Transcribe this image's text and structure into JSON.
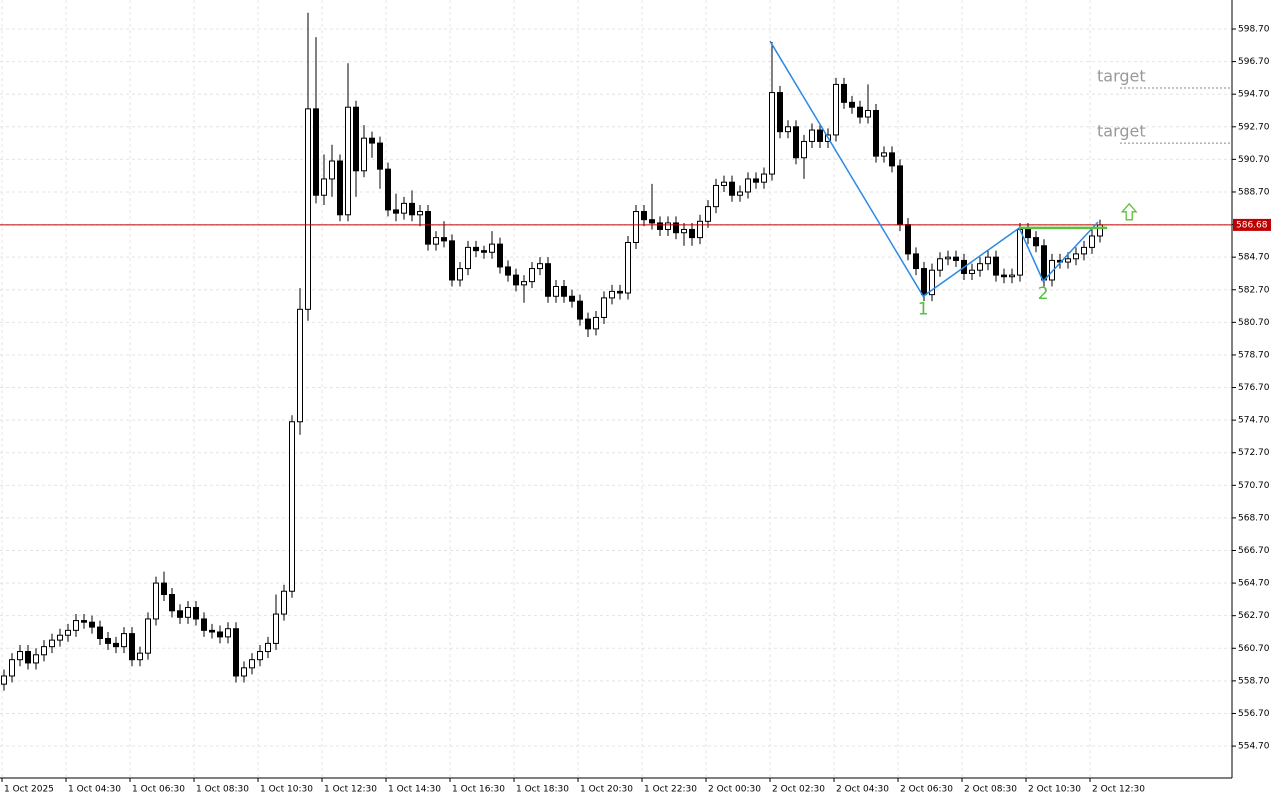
{
  "chart_data": {
    "type": "candlestick",
    "categories": [
      "1 Oct 2025",
      null,
      null,
      null,
      null,
      null,
      null,
      null,
      "1 Oct 04:30",
      null,
      null,
      null,
      null,
      null,
      null,
      null,
      "1 Oct 06:30",
      null,
      null,
      null,
      null,
      null,
      null,
      null,
      "1 Oct 08:30",
      null,
      null,
      null,
      null,
      null,
      null,
      null,
      "1 Oct 10:30",
      null,
      null,
      null,
      null,
      null,
      null,
      null,
      "1 Oct 12:30",
      null,
      null,
      null,
      null,
      null,
      null,
      null,
      "1 Oct 14:30",
      null,
      null,
      null,
      null,
      null,
      null,
      null,
      "1 Oct 16:30",
      null,
      null,
      null,
      null,
      null,
      null,
      null,
      "1 Oct 18:30",
      null,
      null,
      null,
      null,
      null,
      null,
      null,
      "1 Oct 20:30",
      null,
      null,
      null,
      null,
      null,
      null,
      null,
      "1 Oct 22:30",
      null,
      null,
      null,
      null,
      null,
      null,
      null,
      "2 Oct 00:30",
      null,
      null,
      null,
      null,
      null,
      null,
      null,
      "2 Oct 02:30",
      null,
      null,
      null,
      null,
      null,
      null,
      null,
      "2 Oct 04:30",
      null,
      null,
      null,
      null,
      null,
      null,
      null,
      "2 Oct 06:30",
      null,
      null,
      null,
      null,
      null,
      null,
      null,
      "2 Oct 08:30",
      null,
      null,
      null,
      null,
      null,
      null,
      null,
      "2 Oct 10:30",
      null,
      null,
      null,
      null,
      null,
      null,
      null,
      "2 Oct 12:30",
      null
    ],
    "open": [
      558.5,
      559.0,
      560.0,
      560.5,
      559.8,
      560.3,
      560.8,
      561.2,
      561.5,
      561.8,
      562.4,
      562.3,
      562.0,
      561.3,
      561.0,
      560.8,
      561.6,
      560.0,
      560.4,
      562.5,
      564.7,
      564.0,
      563.0,
      562.6,
      563.2,
      562.5,
      561.8,
      561.7,
      561.4,
      561.9,
      559.0,
      559.5,
      560.0,
      560.5,
      561.0,
      562.8,
      564.2,
      574.6,
      581.5,
      593.8,
      588.5,
      589.5,
      590.6,
      587.3,
      593.9,
      590.0,
      592.0,
      591.7,
      590.1,
      587.6,
      587.4,
      588.0,
      587.3,
      587.5,
      585.5,
      585.9,
      585.7,
      583.3,
      584.0,
      585.3,
      585.1,
      585.0,
      585.5,
      584.1,
      583.6,
      583.0,
      583.2,
      584.0,
      584.3,
      582.3,
      582.9,
      582.3,
      582.0,
      580.9,
      580.3,
      581.0,
      582.2,
      582.6,
      582.5,
      585.6,
      587.5,
      587.0,
      586.8,
      586.4,
      586.8,
      586.2,
      586.4,
      585.9,
      586.9,
      587.8,
      589.1,
      589.3,
      588.5,
      588.7,
      589.5,
      589.3,
      589.8,
      594.8,
      592.4,
      592.7,
      590.8,
      591.8,
      592.5,
      591.8,
      592.2,
      595.3,
      594.2,
      593.9,
      593.3,
      593.7,
      590.9,
      591.1,
      590.3,
      586.7,
      584.9,
      584.0,
      582.4,
      583.9,
      584.6,
      584.7,
      584.5,
      583.7,
      583.9,
      584.3,
      584.7,
      583.6,
      583.5,
      583.6,
      586.4,
      585.9,
      585.4,
      583.3,
      584.5,
      584.4,
      584.6,
      584.9,
      585.3,
      586.0
    ],
    "high": [
      559.4,
      560.4,
      560.9,
      560.9,
      560.7,
      561.2,
      561.6,
      561.9,
      562.2,
      562.8,
      562.8,
      562.7,
      562.4,
      561.7,
      561.4,
      562.0,
      562.0,
      560.8,
      562.9,
      565.1,
      565.4,
      564.4,
      563.4,
      563.6,
      563.6,
      562.9,
      562.2,
      562.1,
      562.3,
      562.3,
      559.9,
      560.4,
      560.9,
      561.4,
      564.0,
      564.6,
      575.0,
      582.8,
      599.7,
      598.2,
      591.0,
      591.6,
      591.0,
      596.6,
      594.3,
      592.8,
      592.4,
      592.1,
      590.5,
      588.6,
      588.4,
      588.8,
      587.9,
      587.9,
      586.3,
      586.9,
      586.1,
      584.4,
      585.7,
      585.7,
      585.4,
      586.3,
      585.9,
      584.5,
      584.0,
      583.6,
      584.4,
      584.7,
      584.7,
      583.3,
      583.3,
      582.7,
      582.4,
      581.3,
      581.4,
      582.6,
      583.0,
      583.0,
      586.0,
      587.9,
      587.9,
      589.2,
      587.2,
      587.2,
      587.2,
      586.8,
      586.8,
      587.3,
      588.2,
      589.5,
      589.7,
      589.7,
      589.1,
      589.9,
      589.9,
      590.2,
      597.9,
      595.2,
      593.1,
      593.1,
      592.2,
      592.9,
      592.9,
      592.6,
      595.7,
      595.7,
      594.6,
      594.3,
      595.3,
      594.1,
      591.5,
      591.5,
      590.7,
      587.1,
      585.3,
      584.4,
      584.3,
      585.0,
      585.1,
      585.1,
      584.9,
      584.3,
      584.7,
      585.1,
      585.1,
      584.0,
      584.0,
      586.8,
      586.8,
      586.3,
      585.8,
      584.9,
      584.9,
      585.0,
      585.3,
      585.7,
      586.4,
      587.0
    ],
    "low": [
      558.1,
      558.6,
      559.6,
      559.4,
      559.4,
      559.9,
      560.4,
      560.8,
      561.1,
      561.4,
      561.9,
      561.6,
      560.9,
      560.6,
      560.4,
      560.4,
      559.6,
      559.6,
      560.0,
      562.1,
      563.6,
      562.6,
      562.2,
      562.2,
      562.1,
      561.4,
      561.3,
      561.0,
      561.0,
      558.6,
      558.6,
      559.1,
      559.6,
      560.1,
      560.6,
      562.4,
      563.8,
      573.8,
      580.8,
      588.0,
      587.9,
      588.4,
      586.9,
      586.9,
      588.4,
      589.6,
      590.8,
      588.9,
      587.2,
      586.9,
      587.0,
      586.9,
      586.6,
      585.1,
      585.1,
      585.3,
      582.9,
      582.9,
      583.6,
      584.7,
      584.6,
      584.6,
      583.7,
      583.2,
      582.6,
      581.9,
      582.8,
      583.6,
      581.9,
      581.9,
      581.9,
      581.6,
      580.5,
      579.8,
      579.9,
      580.6,
      581.8,
      582.1,
      582.1,
      585.2,
      586.6,
      586.4,
      586.0,
      586.0,
      585.8,
      585.4,
      585.4,
      585.5,
      586.5,
      587.4,
      588.7,
      588.1,
      588.1,
      588.3,
      588.9,
      588.9,
      589.4,
      592.0,
      592.0,
      590.4,
      589.5,
      591.4,
      591.4,
      591.4,
      591.8,
      593.8,
      593.5,
      592.9,
      592.9,
      590.5,
      590.5,
      589.9,
      586.3,
      584.5,
      583.6,
      582.0,
      582.0,
      583.5,
      584.2,
      584.1,
      583.3,
      583.3,
      583.5,
      583.9,
      583.2,
      583.1,
      583.1,
      583.2,
      585.5,
      585.0,
      582.9,
      582.9,
      584.0,
      584.0,
      584.2,
      584.5,
      584.9,
      585.6
    ],
    "close": [
      559.0,
      560.0,
      560.5,
      559.8,
      560.3,
      560.8,
      561.2,
      561.5,
      561.8,
      562.4,
      562.3,
      562.0,
      561.3,
      561.0,
      560.8,
      561.6,
      560.0,
      560.4,
      562.5,
      564.7,
      564.0,
      563.0,
      562.6,
      563.2,
      562.5,
      561.8,
      561.7,
      561.4,
      561.9,
      559.0,
      559.5,
      560.0,
      560.5,
      561.0,
      562.8,
      564.2,
      574.6,
      581.5,
      593.8,
      588.5,
      589.5,
      590.6,
      587.3,
      593.9,
      590.0,
      592.0,
      591.7,
      590.1,
      587.6,
      587.4,
      588.0,
      587.3,
      587.5,
      585.5,
      585.9,
      585.7,
      583.3,
      584.0,
      585.3,
      585.1,
      585.0,
      585.5,
      584.1,
      583.6,
      583.0,
      583.2,
      584.0,
      584.3,
      582.3,
      582.9,
      582.3,
      582.0,
      580.9,
      580.3,
      581.0,
      582.2,
      582.6,
      582.5,
      585.6,
      587.5,
      587.0,
      586.8,
      586.4,
      586.8,
      586.2,
      586.4,
      585.9,
      586.9,
      587.8,
      589.1,
      589.3,
      588.5,
      588.7,
      589.5,
      589.3,
      589.8,
      594.8,
      592.4,
      592.7,
      590.8,
      591.8,
      592.5,
      591.8,
      592.2,
      595.3,
      594.2,
      593.9,
      593.3,
      593.7,
      590.9,
      591.1,
      590.3,
      586.7,
      584.9,
      584.0,
      582.4,
      583.9,
      584.6,
      584.7,
      584.5,
      583.7,
      583.9,
      584.3,
      584.7,
      583.6,
      583.5,
      583.6,
      586.4,
      585.9,
      585.4,
      583.3,
      584.5,
      584.4,
      584.6,
      584.9,
      585.3,
      586.0,
      586.68
    ],
    "up_color": "#ffffff",
    "down_color": "#000000",
    "ylim": [
      552.74,
      600.48
    ],
    "yticks": [
      {
        "value": 554.7,
        "label": "554.70"
      },
      {
        "value": 556.7,
        "label": "556.70"
      },
      {
        "value": 558.7,
        "label": "558.70"
      },
      {
        "value": 560.7,
        "label": "560.70"
      },
      {
        "value": 562.7,
        "label": "562.70"
      },
      {
        "value": 564.7,
        "label": "564.70"
      },
      {
        "value": 566.7,
        "label": "566.70"
      },
      {
        "value": 568.7,
        "label": "568.70"
      },
      {
        "value": 570.7,
        "label": "570.70"
      },
      {
        "value": 572.7,
        "label": "572.70"
      },
      {
        "value": 574.7,
        "label": "574.70"
      },
      {
        "value": 576.7,
        "label": "576.70"
      },
      {
        "value": 578.7,
        "label": "578.70"
      },
      {
        "value": 580.7,
        "label": "580.70"
      },
      {
        "value": 582.7,
        "label": "582.70"
      },
      {
        "value": 584.7,
        "label": "584.70"
      },
      {
        "value": 586.7,
        "label": "586.70"
      },
      {
        "value": 588.7,
        "label": "588.70"
      },
      {
        "value": 590.7,
        "label": "590.70"
      },
      {
        "value": 592.7,
        "label": "592.70"
      },
      {
        "value": 594.7,
        "label": "594.70"
      },
      {
        "value": 596.7,
        "label": "596.70"
      },
      {
        "value": 598.7,
        "label": "598.70"
      }
    ],
    "grid": true,
    "price_line": {
      "value": 586.68,
      "label": "586.68",
      "color": "#c00000"
    },
    "zigzag": {
      "x": [
        95.75,
        114.9,
        126.9,
        129.9,
        136.75
      ],
      "y": [
        597.96,
        582.3,
        586.49,
        583.23,
        586.86
      ],
      "labels": [
        null,
        "1",
        null,
        "2",
        null
      ],
      "color": "#2a8ae6"
    },
    "level": {
      "x": [
        126.9,
        137.9
      ],
      "value": 586.5,
      "color": "#5cc03a"
    },
    "targets": [
      {
        "label": "target",
        "value": 595.08
      },
      {
        "label": "target",
        "value": 591.7
      }
    ]
  }
}
